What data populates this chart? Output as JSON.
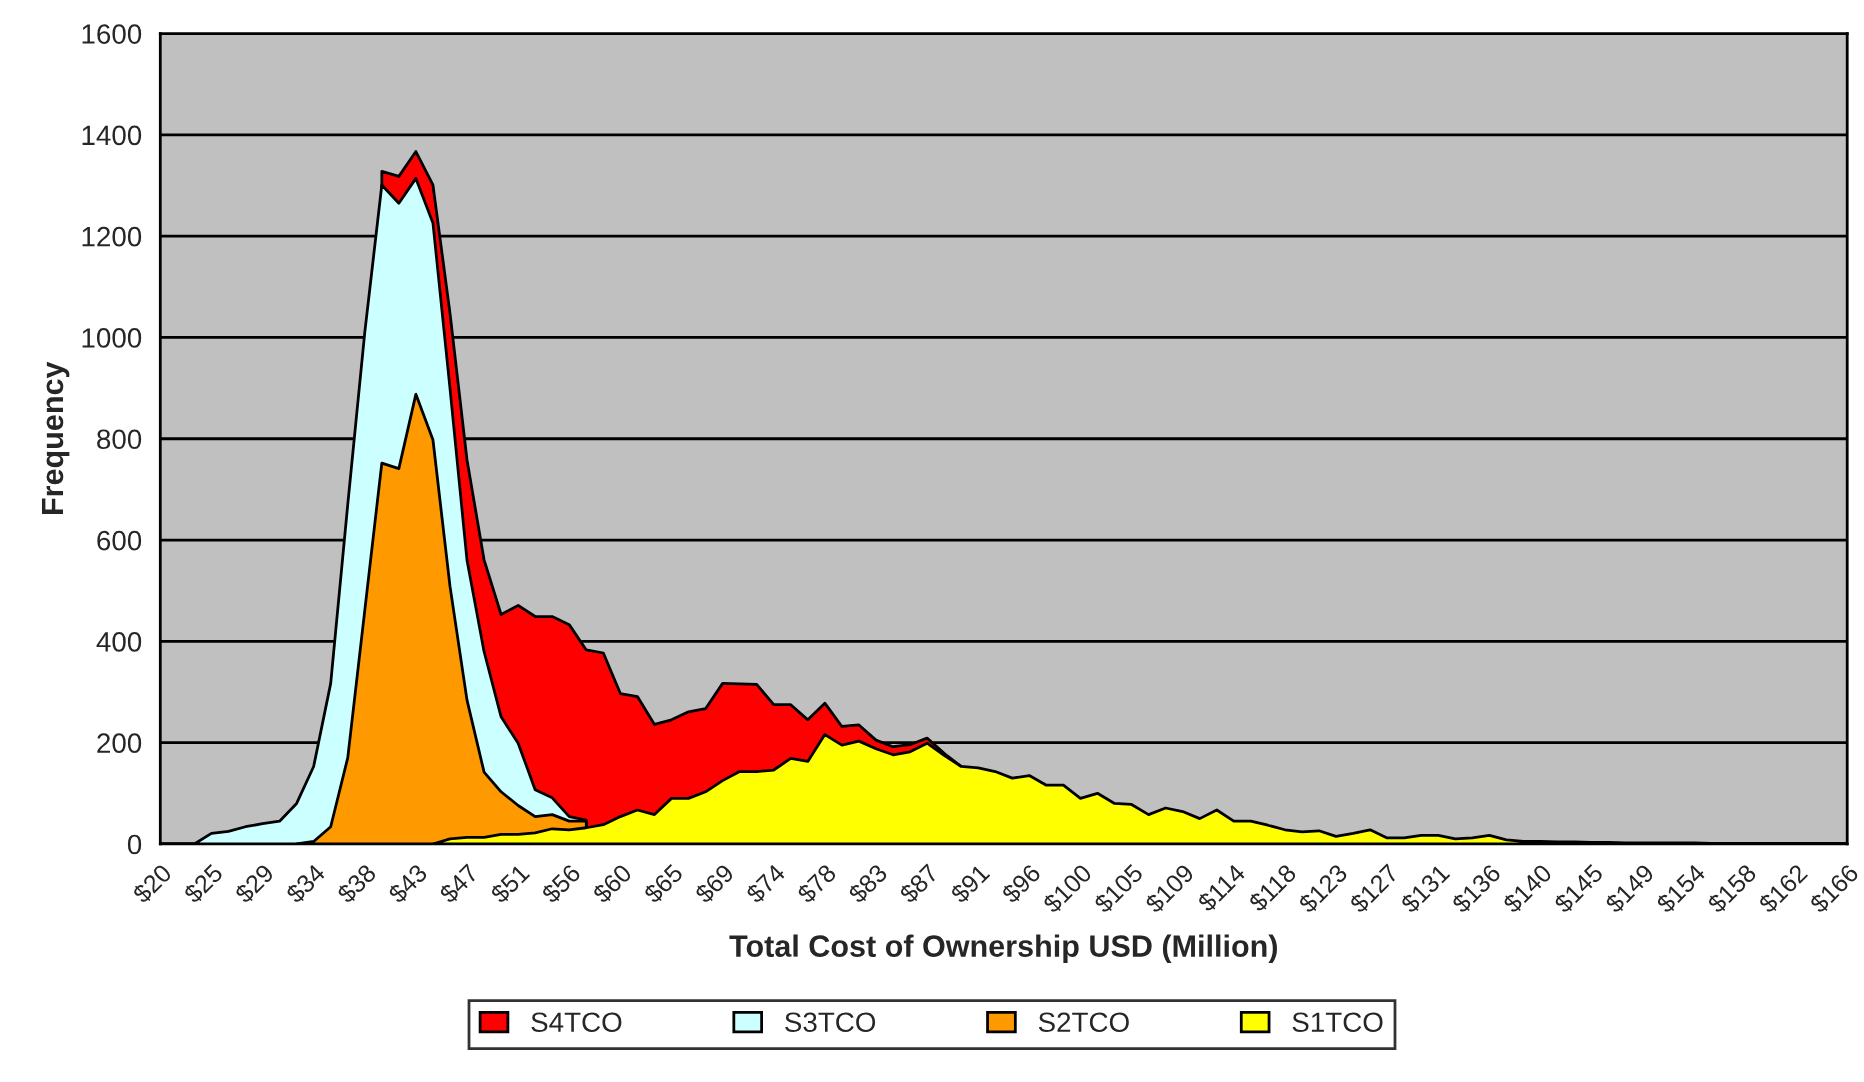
{
  "chart_data": {
    "type": "area",
    "xlabel": "Total Cost of Ownership USD (Million)",
    "ylabel": "Frequency",
    "categories": [
      "$20",
      null,
      null,
      "$25",
      null,
      null,
      "$29",
      null,
      null,
      "$34",
      null,
      null,
      "$38",
      null,
      null,
      "$43",
      null,
      null,
      "$47",
      null,
      null,
      "$51",
      null,
      null,
      "$56",
      null,
      null,
      "$60",
      null,
      null,
      "$65",
      null,
      null,
      "$69",
      null,
      null,
      "$74",
      null,
      null,
      "$78",
      null,
      null,
      "$83",
      null,
      null,
      "$87",
      null,
      null,
      "$91",
      null,
      null,
      "$96",
      null,
      null,
      "$100",
      null,
      null,
      "$105",
      null,
      null,
      "$109",
      null,
      null,
      "$114",
      null,
      null,
      "$118",
      null,
      null,
      "$123",
      null,
      null,
      "$127",
      null,
      null,
      "$131",
      null,
      null,
      "$136",
      null,
      null,
      "$140",
      null,
      null,
      "$145",
      null,
      null,
      "$149",
      null,
      null,
      "$154",
      null,
      null,
      "$158",
      null,
      null,
      "$162",
      null,
      null,
      "$166"
    ],
    "series": [
      {
        "name": "S4TCO",
        "color": "#ff0000",
        "values": [
          null,
          null,
          null,
          null,
          null,
          null,
          null,
          null,
          null,
          null,
          null,
          null,
          null,
          1328,
          1318,
          1367,
          1301,
          1048,
          758,
          561,
          453,
          471,
          449,
          449,
          433,
          383,
          377,
          297,
          291,
          236,
          245,
          261,
          267,
          317,
          316,
          315,
          275,
          275,
          245,
          278,
          232,
          235,
          205,
          192,
          196,
          209,
          179,
          153,
          null,
          null,
          null,
          null,
          null,
          null,
          null,
          null,
          null,
          null,
          null,
          null,
          null,
          null,
          null,
          null,
          null,
          null,
          null,
          null,
          null,
          null,
          null,
          null,
          null,
          null,
          null,
          null,
          null,
          null,
          null,
          null,
          null,
          null,
          null,
          null,
          null,
          null,
          null,
          null,
          null,
          null,
          null,
          null,
          null,
          null,
          null,
          null,
          null,
          null,
          null,
          null
        ]
      },
      {
        "name": "S3TCO",
        "color": "#ccffff",
        "values": [
          0,
          0,
          0,
          21,
          25,
          34,
          40,
          45,
          80,
          153,
          317,
          670,
          1010,
          1301,
          1265,
          1314,
          1226,
          900,
          560,
          380,
          251,
          199,
          107,
          91,
          54,
          47,
          null,
          null,
          null,
          null,
          null,
          null,
          null,
          null,
          null,
          null,
          null,
          null,
          null,
          null,
          null,
          null,
          null,
          null,
          null,
          null,
          null,
          null,
          null,
          null,
          null,
          null,
          null,
          null,
          null,
          null,
          null,
          null,
          null,
          null,
          null,
          null,
          null,
          null,
          null,
          null,
          null,
          null,
          null,
          null,
          null,
          null,
          null,
          null,
          null,
          null,
          null,
          null,
          null,
          null,
          null,
          null,
          null,
          null,
          null,
          null,
          null,
          null,
          null,
          null,
          null,
          null,
          null,
          null,
          null,
          null,
          null,
          null,
          null,
          null
        ]
      },
      {
        "name": "S2TCO",
        "color": "#ff9900",
        "values": [
          null,
          null,
          null,
          null,
          null,
          null,
          null,
          null,
          0,
          5,
          34,
          170,
          461,
          752,
          741,
          888,
          798,
          509,
          284,
          142,
          103,
          76,
          54,
          58,
          45,
          45,
          null,
          null,
          null,
          null,
          null,
          null,
          null,
          null,
          null,
          null,
          null,
          null,
          null,
          null,
          null,
          null,
          null,
          null,
          null,
          null,
          null,
          null,
          null,
          null,
          null,
          null,
          null,
          null,
          null,
          null,
          null,
          null,
          null,
          null,
          null,
          null,
          null,
          null,
          null,
          null,
          null,
          null,
          null,
          null,
          null,
          null,
          null,
          null,
          null,
          null,
          null,
          null,
          null,
          null,
          null,
          null,
          null,
          null,
          null,
          null,
          null,
          null,
          null,
          null,
          null,
          null,
          null,
          null,
          null,
          null,
          null,
          null,
          null,
          null
        ]
      },
      {
        "name": "S1TCO",
        "color": "#ffff00",
        "values": [
          null,
          null,
          null,
          null,
          null,
          null,
          null,
          null,
          null,
          null,
          null,
          null,
          null,
          null,
          null,
          null,
          0,
          10,
          13,
          13,
          19,
          19,
          22,
          30,
          28,
          32,
          38,
          54,
          67,
          58,
          90,
          90,
          103,
          125,
          143,
          143,
          146,
          169,
          163,
          216,
          195,
          203,
          188,
          176,
          182,
          199,
          175,
          153,
          150,
          143,
          130,
          135,
          116,
          116,
          90,
          100,
          80,
          78,
          58,
          71,
          64,
          50,
          67,
          45,
          45,
          37,
          28,
          24,
          26,
          15,
          21,
          28,
          12,
          12,
          17,
          17,
          10,
          12,
          17,
          8,
          5,
          5,
          4,
          4,
          3,
          3,
          2,
          2,
          2,
          2,
          2,
          1,
          1,
          1,
          1,
          1,
          1,
          1,
          1,
          1
        ]
      }
    ],
    "ylim": [
      0,
      1600
    ],
    "yticks": [
      0,
      200,
      400,
      600,
      800,
      1000,
      1200,
      1400,
      1600
    ],
    "grid": "y",
    "legend": "bottom"
  }
}
